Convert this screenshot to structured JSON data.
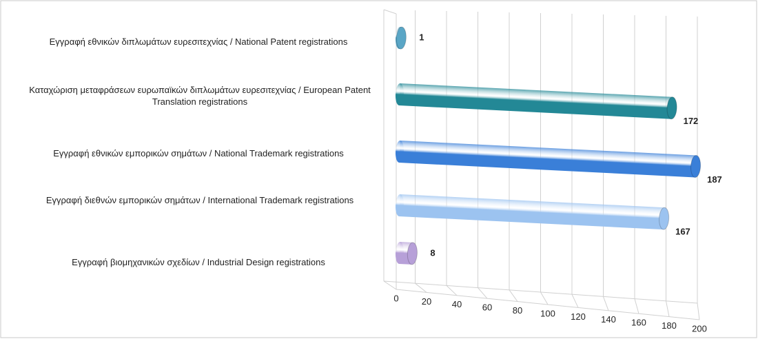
{
  "chart_data": {
    "type": "bar3d",
    "categories": [
      "Εγγραφή  εθνικών διπλωμάτων ευρεσιτεχνίας / National Patent registrations",
      "Καταχώριση μεταφράσεων ευρωπαϊκών διπλωμάτων ευρεσιτεχνίας / European Patent Translation registrations",
      "Εγγραφή  εθνικών εμπορικών σημάτων / National Trademark registrations",
      "Εγγραφή  διεθνών εμπορικών σημάτων / International Trademark registrations",
      "Εγγραφή  βιομηχανικών σχεδίων / Industrial Design registrations"
    ],
    "values": [
      1,
      172,
      187,
      167,
      8
    ],
    "colors": [
      "#5aa6c6",
      "#238896",
      "#3a7fd8",
      "#9cc3f0",
      "#b7a0d8"
    ],
    "xlim": [
      0,
      200
    ],
    "xticks": [
      0,
      20,
      40,
      60,
      80,
      100,
      120,
      140,
      160,
      180,
      200
    ],
    "grid": true
  }
}
